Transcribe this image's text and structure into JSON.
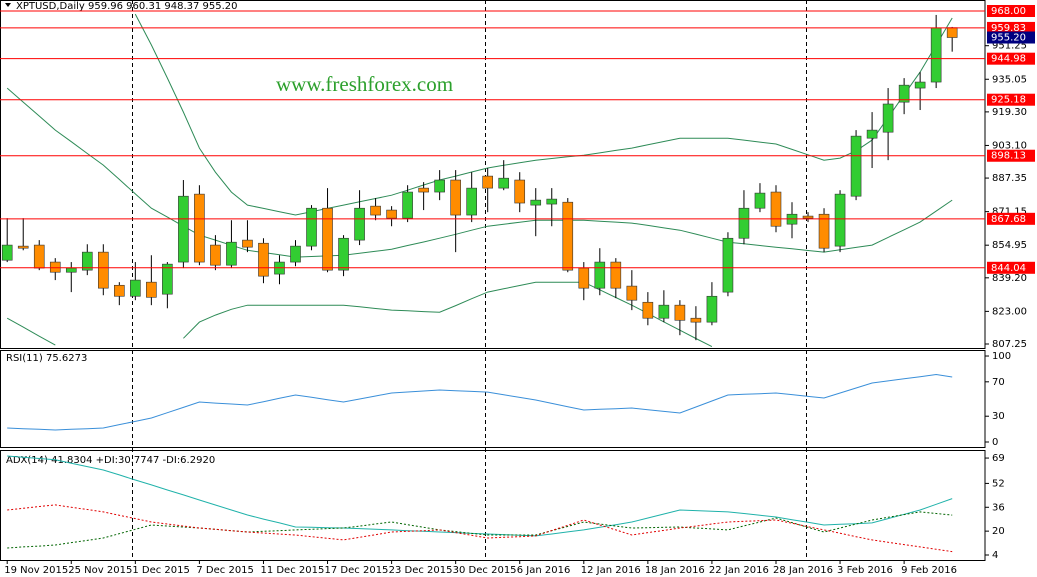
{
  "chart_data": [
    {
      "type": "candlestick",
      "title": "XPTUSD,Daily  959.96 960.31 948.37 955.20",
      "watermark": "www.freshforex.com",
      "categories": [
        "19 Nov 2015",
        null,
        null,
        null,
        "25 Nov 2015",
        null,
        null,
        null,
        "1 Dec 2015",
        null,
        null,
        null,
        "7 Dec 2015",
        null,
        null,
        null,
        "11 Dec 2015",
        null,
        null,
        null,
        "17 Dec 2015",
        null,
        null,
        null,
        "23 Dec 2015",
        null,
        null,
        null,
        "30 Dec 2015",
        null,
        null,
        null,
        "6 Jan 2016",
        null,
        null,
        null,
        "12 Jan 2016",
        null,
        null,
        null,
        "18 Jan 2016",
        null,
        null,
        null,
        "22 Jan 2016",
        null,
        null,
        null,
        "28 Jan 2016",
        null,
        null,
        null,
        "3 Feb 2016",
        null,
        null,
        null,
        "9 Feb 2016",
        null,
        null,
        null
      ],
      "open": [
        847.7,
        854.5,
        855.0,
        846.8,
        841.9,
        842.9,
        851.6,
        835.6,
        830.3,
        837.1,
        831.3,
        846.8,
        879.6,
        855.0,
        845.3,
        857.4,
        855.9,
        841.0,
        846.8,
        854.5,
        872.8,
        842.9,
        857.4,
        873.8,
        871.9,
        868.0,
        882.5,
        880.6,
        886.4,
        869.5,
        888.3,
        882.5,
        886.4,
        874.3,
        874.8,
        875.7,
        843.9,
        834.2,
        846.8,
        835.2,
        827.4,
        819.7,
        826.0,
        819.7,
        817.8,
        832.3,
        858.3,
        872.8,
        880.6,
        865.1,
        869.0,
        869.9,
        854.5,
        878.6,
        906.6,
        909.5,
        924.0,
        930.8,
        933.7,
        959.96
      ],
      "high": [
        868.0,
        868.0,
        857.4,
        848.7,
        846.8,
        855.4,
        855.4,
        837.1,
        846.8,
        850.1,
        846.8,
        886.4,
        883.9,
        859.8,
        867.0,
        867.0,
        858.3,
        850.1,
        857.4,
        874.3,
        882.5,
        859.8,
        881.5,
        877.7,
        873.8,
        883.9,
        885.4,
        891.2,
        891.2,
        890.2,
        892.2,
        896.0,
        890.2,
        882.5,
        882.5,
        877.7,
        846.8,
        853.5,
        848.7,
        842.9,
        832.3,
        833.2,
        828.4,
        825.5,
        837.1,
        861.2,
        881.5,
        884.9,
        883.9,
        875.7,
        870.9,
        872.8,
        881.5,
        910.5,
        919.2,
        930.8,
        935.6,
        938.5,
        966.1,
        960.31
      ],
      "low": [
        846.8,
        852.5,
        842.9,
        838.1,
        832.3,
        840.5,
        830.8,
        826.0,
        828.4,
        826.0,
        824.5,
        843.9,
        845.3,
        842.9,
        843.9,
        851.6,
        836.6,
        836.1,
        844.8,
        852.5,
        841.9,
        840.0,
        855.0,
        867.0,
        864.1,
        866.1,
        871.9,
        876.7,
        851.6,
        866.1,
        870.9,
        881.5,
        870.9,
        859.3,
        864.1,
        841.9,
        828.4,
        830.8,
        829.4,
        823.6,
        816.3,
        817.8,
        811.5,
        809.1,
        816.3,
        830.3,
        855.4,
        870.9,
        861.2,
        858.3,
        866.1,
        851.6,
        851.6,
        876.7,
        892.2,
        896.0,
        918.2,
        920.2,
        930.8,
        948.37
      ],
      "close": [
        855.0,
        853.5,
        843.9,
        841.9,
        843.9,
        851.6,
        834.2,
        830.3,
        838.1,
        829.8,
        845.8,
        878.6,
        846.8,
        845.3,
        856.4,
        854.0,
        840.0,
        846.8,
        854.5,
        872.8,
        842.9,
        858.3,
        872.8,
        869.5,
        868.0,
        880.6,
        880.6,
        886.4,
        869.5,
        882.5,
        882.5,
        887.3,
        875.3,
        876.7,
        877.2,
        842.9,
        834.2,
        846.8,
        834.2,
        828.4,
        819.7,
        826.0,
        818.7,
        817.8,
        830.3,
        858.3,
        872.8,
        880.1,
        864.1,
        869.9,
        868.0,
        853.5,
        879.6,
        907.6,
        910.5,
        923.1,
        932.2,
        933.7,
        959.9,
        955.2
      ],
      "up_color": "#32cd32",
      "down_color": "#ff8c00",
      "bands": [
        {
          "color": "#2e8b57",
          "values": [
            null,
            null,
            null,
            null,
            null,
            null,
            null,
            null,
            966.5,
            951.6,
            935.6,
            919.2,
            901.8,
            890.2,
            880.6,
            874.3,
            872.7,
            871.1,
            869.5,
            871.1,
            872.7,
            874.3,
            875.9,
            877.5,
            879.1,
            881.5,
            884.0,
            886.4,
            888.3,
            890.3,
            892.2,
            893.5,
            894.7,
            896.0,
            896.8,
            897.6,
            898.4,
            899.5,
            900.7,
            901.8,
            903.4,
            905.0,
            906.6,
            906.6,
            906.6,
            906.6,
            905.7,
            904.7,
            903.8,
            901.2,
            898.6,
            896.0,
            897.0,
            900.5,
            905.7,
            916.6,
            927.6,
            938.5,
            951.6,
            964.6
          ]
        },
        {
          "color": "#2e8b57",
          "values": [
            930.8,
            924.0,
            917.3,
            910.5,
            904.9,
            899.2,
            893.6,
            886.7,
            879.7,
            872.8,
            868.5,
            864.1,
            859.8,
            857.4,
            854.9,
            852.5,
            851.4,
            850.3,
            849.2,
            849.5,
            849.8,
            850.1,
            851.1,
            852.0,
            853.0,
            854.8,
            856.5,
            858.3,
            860.2,
            862.2,
            864.1,
            865.1,
            866.0,
            867.0,
            867.0,
            867.0,
            867.0,
            866.5,
            866.1,
            865.6,
            864.5,
            863.3,
            862.2,
            860.3,
            858.3,
            856.4,
            855.6,
            854.8,
            854.0,
            853.2,
            852.4,
            851.6,
            852.7,
            853.9,
            855.0,
            858.7,
            862.4,
            866.1,
            871.4,
            876.7
          ]
        },
        {
          "color": "#2e8b57",
          "values": [
            819.7,
            815.4,
            811.0,
            806.7,
            null,
            null,
            null,
            null,
            null,
            null,
            null,
            810.0,
            817.8,
            821.2,
            824.0,
            826.0,
            826.0,
            826.0,
            826.0,
            826.0,
            826.0,
            826.0,
            825.2,
            824.4,
            823.6,
            823.3,
            822.9,
            822.6,
            825.8,
            829.1,
            832.3,
            833.9,
            835.5,
            837.1,
            837.1,
            837.1,
            837.1,
            833.4,
            829.7,
            826.0,
            822.0,
            817.9,
            813.9,
            809.9,
            806.0,
            null,
            null,
            null,
            null,
            null,
            null,
            null,
            null,
            null,
            null,
            null,
            null,
            null,
            null,
            null
          ]
        }
      ],
      "ylim": [
        805.32,
        973.31
      ],
      "yticks": [
        951.25,
        935.05,
        {
          "value": 919.3,
          "label": "919.30"
        },
        {
          "value": 903.1,
          "label": "903.10"
        },
        887.35,
        871.15,
        854.95,
        {
          "value": 839.2,
          "label": "839.20"
        },
        {
          "value": 823,
          "label": "823.00"
        },
        807.25
      ],
      "levels": [
        {
          "value": 968,
          "label": "968.00"
        },
        959.83,
        944.98,
        925.18,
        898.13,
        867.68,
        844.04
      ],
      "level_color": "#ff0000",
      "last_price": {
        "value": 955.2,
        "label": "955.20",
        "color": "#000080"
      }
    },
    {
      "type": "line",
      "title": "RSI(11) 75.6273",
      "series": [
        {
          "color": "#3a8fd9",
          "values": [
            16.3,
            15.5,
            14.8,
            14.0,
            14.8,
            15.5,
            16.3,
            20.2,
            24.0,
            27.9,
            34.1,
            40.3,
            46.5,
            45.3,
            44.2,
            43.0,
            46.9,
            50.8,
            54.7,
            52.0,
            49.2,
            46.5,
            50.0,
            53.5,
            57.0,
            58.2,
            59.3,
            60.5,
            59.7,
            58.8,
            58.0,
            54.9,
            51.9,
            48.8,
            44.9,
            41.1,
            37.2,
            38.0,
            38.7,
            39.5,
            37.6,
            35.6,
            33.7,
            40.7,
            47.7,
            54.7,
            55.5,
            56.2,
            57.0,
            55.1,
            53.1,
            51.2,
            57.0,
            62.8,
            68.6,
            71.1,
            73.5,
            76.0,
            78.5,
            75.6273
          ]
        }
      ],
      "ylim": [
        -5.8,
        107
      ],
      "yticks": [
        100,
        70,
        30,
        0
      ]
    },
    {
      "type": "line",
      "title": "ADX(14) 41.8304 +DI:30.7747 -DI:6.2920",
      "series": [
        {
          "color": "#20b2aa",
          "style": "solid",
          "values": [
            70.4,
            69.5,
            68.7,
            67.8,
            65.5,
            63.3,
            61.0,
            57.7,
            54.3,
            51.0,
            47.6,
            44.3,
            40.9,
            37.5,
            34.2,
            30.8,
            28.1,
            25.5,
            22.8,
            22.6,
            22.3,
            22.1,
            21.7,
            21.2,
            20.8,
            20.3,
            19.9,
            19.4,
            19.0,
            18.5,
            18.1,
            17.7,
            17.2,
            16.8,
            18.1,
            19.5,
            20.8,
            22.6,
            24.3,
            26.1,
            28.8,
            31.5,
            34.2,
            33.8,
            33.3,
            32.9,
            31.8,
            30.6,
            29.5,
            27.7,
            25.9,
            24.1,
            24.6,
            25.0,
            25.5,
            28.4,
            31.3,
            34.2,
            38.0,
            41.8304
          ]
        },
        {
          "color": "#006400",
          "style": "dotted",
          "values": [
            8.7,
            9.4,
            10.0,
            10.7,
            12.3,
            13.8,
            15.4,
            18.3,
            21.2,
            24.1,
            23.4,
            22.8,
            22.1,
            21.2,
            20.3,
            19.4,
            19.9,
            20.3,
            20.8,
            21.2,
            21.7,
            22.1,
            23.4,
            24.8,
            26.1,
            24.3,
            22.6,
            20.8,
            19.7,
            18.5,
            17.4,
            17.4,
            17.4,
            17.4,
            20.3,
            23.2,
            26.1,
            24.8,
            23.4,
            22.1,
            22.3,
            22.6,
            22.8,
            22.1,
            21.5,
            20.8,
            23.5,
            26.1,
            28.8,
            25.7,
            22.5,
            19.4,
            22.1,
            24.8,
            27.5,
            29.3,
            31.1,
            32.9,
            31.8,
            30.7747
          ]
        },
        {
          "color": "#e00000",
          "style": "dotted",
          "values": [
            34.2,
            35.3,
            36.5,
            37.6,
            36.0,
            34.5,
            32.9,
            30.6,
            28.4,
            26.1,
            24.8,
            23.4,
            22.1,
            21.2,
            20.3,
            19.4,
            18.7,
            18.1,
            17.4,
            16.3,
            15.2,
            14.1,
            15.9,
            17.6,
            19.4,
            19.9,
            20.3,
            20.8,
            19.0,
            17.2,
            15.4,
            15.9,
            16.3,
            16.8,
            20.4,
            23.9,
            27.5,
            24.1,
            20.8,
            17.4,
            19.0,
            20.5,
            22.1,
            23.4,
            24.8,
            26.1,
            26.6,
            27.0,
            27.5,
            25.3,
            23.0,
            20.8,
            18.6,
            16.3,
            14.1,
            12.5,
            11.0,
            9.4,
            7.8,
            6.292
          ]
        }
      ],
      "ylim": [
        0.65,
        74.4
      ],
      "yticks": [
        69,
        52,
        36,
        20,
        4
      ]
    }
  ]
}
